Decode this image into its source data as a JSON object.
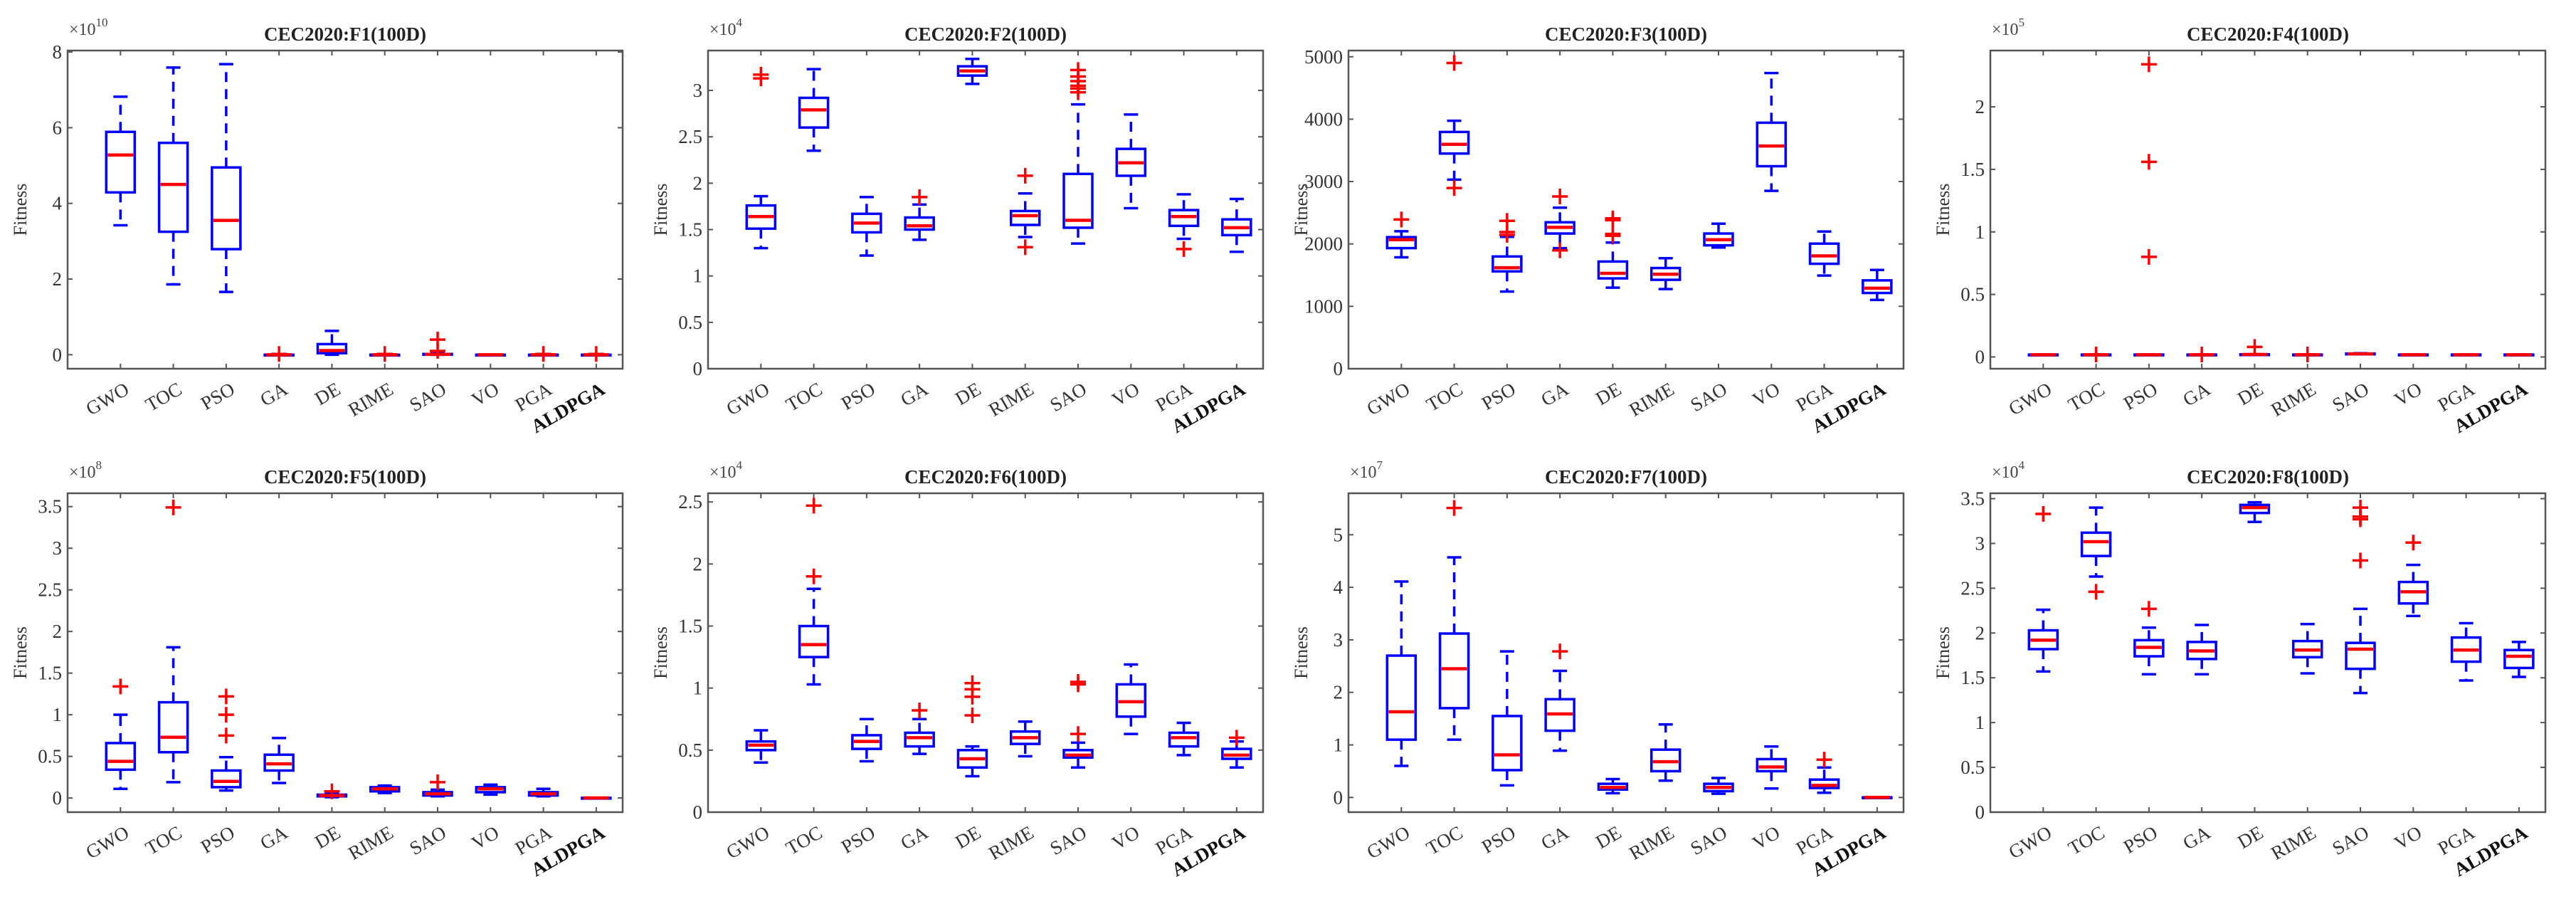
{
  "chart_data": [
    {
      "type": "boxplot",
      "title": "CEC2020:F1(100D)",
      "ylabel": "Fitness",
      "multiplier": "×10",
      "exponent": "10",
      "categories": [
        "GWO",
        "TOC",
        "PSO",
        "GA",
        "DE",
        "RIME",
        "SAO",
        "VO",
        "PGA",
        "ALDPGA"
      ],
      "highlight_category": "ALDPGA",
      "ylim": [
        -0.37,
        8.04
      ],
      "yticks": [
        0,
        2,
        4,
        6,
        8
      ],
      "ytick_labels": [
        "0",
        "2",
        "4",
        "6",
        "8"
      ],
      "boxes": [
        {
          "low": 3.42,
          "q1": 4.29,
          "median": 5.28,
          "q3": 5.89,
          "high": 6.82,
          "outliers": []
        },
        {
          "low": 1.86,
          "q1": 3.25,
          "median": 4.5,
          "q3": 5.6,
          "high": 7.59,
          "outliers": []
        },
        {
          "low": 1.66,
          "q1": 2.79,
          "median": 3.55,
          "q3": 4.95,
          "high": 7.68,
          "outliers": []
        },
        {
          "low": 0,
          "q1": 0,
          "median": 0,
          "q3": 0,
          "high": 0,
          "outliers": [
            0.02
          ]
        },
        {
          "low": 0,
          "q1": 0.04,
          "median": 0.11,
          "q3": 0.28,
          "high": 0.63,
          "outliers": []
        },
        {
          "low": 0,
          "q1": 0,
          "median": 0,
          "q3": 0,
          "high": 0,
          "outliers": [
            0.02
          ]
        },
        {
          "low": 0,
          "q1": 0,
          "median": 0.01,
          "q3": 0.02,
          "high": 0.04,
          "outliers": [
            0.1,
            0.4
          ]
        },
        {
          "low": 0,
          "q1": 0,
          "median": 0,
          "q3": 0,
          "high": 0,
          "outliers": []
        },
        {
          "low": 0,
          "q1": 0,
          "median": 0,
          "q3": 0,
          "high": 0,
          "outliers": [
            0.02
          ]
        },
        {
          "low": 0,
          "q1": 0,
          "median": 0,
          "q3": 0,
          "high": 0,
          "outliers": [
            0.02
          ]
        }
      ]
    },
    {
      "type": "boxplot",
      "title": "CEC2020:F2(100D)",
      "ylabel": "Fitness",
      "multiplier": "×10",
      "exponent": "4",
      "categories": [
        "GWO",
        "TOC",
        "PSO",
        "GA",
        "DE",
        "RIME",
        "SAO",
        "VO",
        "PGA",
        "ALDPGA"
      ],
      "highlight_category": "ALDPGA",
      "ylim": [
        0,
        3.43
      ],
      "yticks": [
        0,
        0.5,
        1,
        1.5,
        2,
        2.5,
        3
      ],
      "ytick_labels": [
        "0",
        "0.5",
        "1",
        "1.5",
        "2",
        "2.5",
        "3"
      ],
      "boxes": [
        {
          "low": 1.3,
          "q1": 1.51,
          "median": 1.64,
          "q3": 1.76,
          "high": 1.86,
          "outliers": [
            3.13,
            3.17
          ]
        },
        {
          "low": 2.35,
          "q1": 2.6,
          "median": 2.79,
          "q3": 2.92,
          "high": 3.23,
          "outliers": []
        },
        {
          "low": 1.22,
          "q1": 1.47,
          "median": 1.57,
          "q3": 1.67,
          "high": 1.85,
          "outliers": []
        },
        {
          "low": 1.39,
          "q1": 1.5,
          "median": 1.54,
          "q3": 1.63,
          "high": 1.77,
          "outliers": [
            1.85
          ]
        },
        {
          "low": 3.07,
          "q1": 3.16,
          "median": 3.21,
          "q3": 3.26,
          "high": 3.34,
          "outliers": []
        },
        {
          "low": 1.42,
          "q1": 1.55,
          "median": 1.65,
          "q3": 1.7,
          "high": 1.89,
          "outliers": [
            2.08,
            1.31
          ]
        },
        {
          "low": 1.35,
          "q1": 1.52,
          "median": 1.6,
          "q3": 2.1,
          "high": 2.85,
          "outliers": [
            2.98,
            3.02,
            3.05,
            3.1,
            3.15,
            3.22
          ]
        },
        {
          "low": 1.73,
          "q1": 2.08,
          "median": 2.22,
          "q3": 2.37,
          "high": 2.74,
          "outliers": []
        },
        {
          "low": 1.4,
          "q1": 1.54,
          "median": 1.64,
          "q3": 1.71,
          "high": 1.88,
          "outliers": [
            1.29
          ]
        },
        {
          "low": 1.26,
          "q1": 1.44,
          "median": 1.52,
          "q3": 1.61,
          "high": 1.83,
          "outliers": []
        }
      ]
    },
    {
      "type": "boxplot",
      "title": "CEC2020:F3(100D)",
      "ylabel": "Fitness",
      "multiplier": "",
      "exponent": "",
      "categories": [
        "GWO",
        "TOC",
        "PSO",
        "GA",
        "DE",
        "RIME",
        "SAO",
        "VO",
        "PGA",
        "ALDPGA"
      ],
      "highlight_category": "ALDPGA",
      "ylim": [
        0,
        5100
      ],
      "yticks": [
        0,
        1000,
        2000,
        3000,
        4000,
        5000
      ],
      "ytick_labels": [
        "0",
        "1000",
        "2000",
        "3000",
        "4000",
        "5000"
      ],
      "boxes": [
        {
          "low": 1785,
          "q1": 1933,
          "median": 2068,
          "q3": 2109,
          "high": 2203,
          "outliers": [
            2392
          ]
        },
        {
          "low": 3031,
          "q1": 3449,
          "median": 3597,
          "q3": 3795,
          "high": 3975,
          "outliers": [
            2896,
            4901
          ]
        },
        {
          "low": 1236,
          "q1": 1560,
          "median": 1619,
          "q3": 1799,
          "high": 2113,
          "outliers": [
            2145,
            2190,
            2370
          ]
        },
        {
          "low": 1933,
          "q1": 2167,
          "median": 2266,
          "q3": 2347,
          "high": 2581,
          "outliers": [
            1897,
            2761
          ]
        },
        {
          "low": 1299,
          "q1": 1448,
          "median": 1529,
          "q3": 1718,
          "high": 2023,
          "outliers": [
            2130,
            2160,
            2380,
            2410
          ]
        },
        {
          "low": 1277,
          "q1": 1425,
          "median": 1515,
          "q3": 1614,
          "high": 1772,
          "outliers": []
        },
        {
          "low": 1942,
          "q1": 1978,
          "median": 2068,
          "q3": 2167,
          "high": 2325,
          "outliers": []
        },
        {
          "low": 2851,
          "q1": 3246,
          "median": 3570,
          "q3": 3943,
          "high": 4739,
          "outliers": []
        },
        {
          "low": 1493,
          "q1": 1682,
          "median": 1808,
          "q3": 2005,
          "high": 2199,
          "outliers": []
        },
        {
          "low": 1102,
          "q1": 1214,
          "median": 1290,
          "q3": 1416,
          "high": 1583,
          "outliers": []
        }
      ]
    },
    {
      "type": "boxplot",
      "title": "CEC2020:F4(100D)",
      "ylabel": "Fitness",
      "multiplier": "×10",
      "exponent": "5",
      "categories": [
        "GWO",
        "TOC",
        "PSO",
        "GA",
        "DE",
        "RIME",
        "SAO",
        "VO",
        "PGA",
        "ALDPGA"
      ],
      "highlight_category": "ALDPGA",
      "ylim": [
        -0.094,
        2.45
      ],
      "yticks": [
        0,
        0.5,
        1,
        1.5,
        2
      ],
      "ytick_labels": [
        "0",
        "0.5",
        "1",
        "1.5",
        "2"
      ],
      "boxes": [
        {
          "low": 0.017,
          "q1": 0.018,
          "median": 0.018,
          "q3": 0.019,
          "high": 0.02,
          "outliers": []
        },
        {
          "low": 0.017,
          "q1": 0.018,
          "median": 0.018,
          "q3": 0.019,
          "high": 0.02,
          "outliers": [
            0.02
          ]
        },
        {
          "low": 0.017,
          "q1": 0.018,
          "median": 0.018,
          "q3": 0.019,
          "high": 0.02,
          "outliers": [
            0.8,
            1.56,
            2.34
          ]
        },
        {
          "low": 0.017,
          "q1": 0.018,
          "median": 0.018,
          "q3": 0.019,
          "high": 0.02,
          "outliers": [
            0.02
          ]
        },
        {
          "low": 0.018,
          "q1": 0.019,
          "median": 0.02,
          "q3": 0.021,
          "high": 0.022,
          "outliers": [
            0.08
          ]
        },
        {
          "low": 0.017,
          "q1": 0.018,
          "median": 0.018,
          "q3": 0.019,
          "high": 0.02,
          "outliers": [
            0.02
          ]
        },
        {
          "low": 0.022,
          "q1": 0.024,
          "median": 0.025,
          "q3": 0.027,
          "high": 0.03,
          "outliers": []
        },
        {
          "low": 0.017,
          "q1": 0.018,
          "median": 0.018,
          "q3": 0.019,
          "high": 0.02,
          "outliers": []
        },
        {
          "low": 0.017,
          "q1": 0.018,
          "median": 0.018,
          "q3": 0.019,
          "high": 0.02,
          "outliers": []
        },
        {
          "low": 0.017,
          "q1": 0.018,
          "median": 0.018,
          "q3": 0.019,
          "high": 0.02,
          "outliers": []
        }
      ]
    },
    {
      "type": "boxplot",
      "title": "CEC2020:F5(100D)",
      "ylabel": "Fitness",
      "multiplier": "×10",
      "exponent": "8",
      "categories": [
        "GWO",
        "TOC",
        "PSO",
        "GA",
        "DE",
        "RIME",
        "SAO",
        "VO",
        "PGA",
        "ALDPGA"
      ],
      "highlight_category": "ALDPGA",
      "ylim": [
        -0.17,
        3.66
      ],
      "yticks": [
        0,
        0.5,
        1,
        1.5,
        2,
        2.5,
        3,
        3.5
      ],
      "ytick_labels": [
        "0",
        "0.5",
        "1",
        "1.5",
        "2",
        "2.5",
        "3",
        "3.5"
      ],
      "boxes": [
        {
          "low": 0.11,
          "q1": 0.34,
          "median": 0.44,
          "q3": 0.66,
          "high": 1.0,
          "outliers": [
            1.34
          ]
        },
        {
          "low": 0.19,
          "q1": 0.55,
          "median": 0.73,
          "q3": 1.15,
          "high": 1.81,
          "outliers": [
            3.49
          ]
        },
        {
          "low": 0.09,
          "q1": 0.13,
          "median": 0.2,
          "q3": 0.33,
          "high": 0.49,
          "outliers": [
            0.75,
            1.0,
            1.22
          ]
        },
        {
          "low": 0.18,
          "q1": 0.33,
          "median": 0.41,
          "q3": 0.52,
          "high": 0.72,
          "outliers": []
        },
        {
          "low": 0.01,
          "q1": 0.02,
          "median": 0.03,
          "q3": 0.04,
          "high": 0.05,
          "outliers": [
            0.08
          ]
        },
        {
          "low": 0.06,
          "q1": 0.08,
          "median": 0.11,
          "q3": 0.13,
          "high": 0.15,
          "outliers": []
        },
        {
          "low": 0.02,
          "q1": 0.03,
          "median": 0.05,
          "q3": 0.07,
          "high": 0.1,
          "outliers": [
            0.19
          ]
        },
        {
          "low": 0.04,
          "q1": 0.07,
          "median": 0.11,
          "q3": 0.13,
          "high": 0.16,
          "outliers": []
        },
        {
          "low": 0.02,
          "q1": 0.03,
          "median": 0.05,
          "q3": 0.07,
          "high": 0.11,
          "outliers": []
        },
        {
          "low": 0.0,
          "q1": 0.0,
          "median": 0.001,
          "q3": 0.002,
          "high": 0.003,
          "outliers": []
        }
      ]
    },
    {
      "type": "boxplot",
      "title": "CEC2020:F6(100D)",
      "ylabel": "Fitness",
      "multiplier": "×10",
      "exponent": "4",
      "categories": [
        "GWO",
        "TOC",
        "PSO",
        "GA",
        "DE",
        "RIME",
        "SAO",
        "VO",
        "PGA",
        "ALDPGA"
      ],
      "highlight_category": "ALDPGA",
      "ylim": [
        0,
        2.57
      ],
      "yticks": [
        0,
        0.5,
        1,
        1.5,
        2,
        2.5
      ],
      "ytick_labels": [
        "0",
        "0.5",
        "1",
        "1.5",
        "2",
        "2.5"
      ],
      "boxes": [
        {
          "low": 0.4,
          "q1": 0.5,
          "median": 0.54,
          "q3": 0.57,
          "high": 0.66,
          "outliers": []
        },
        {
          "low": 1.03,
          "q1": 1.25,
          "median": 1.35,
          "q3": 1.5,
          "high": 1.8,
          "outliers": [
            1.9,
            2.47
          ]
        },
        {
          "low": 0.41,
          "q1": 0.51,
          "median": 0.57,
          "q3": 0.62,
          "high": 0.75,
          "outliers": []
        },
        {
          "low": 0.47,
          "q1": 0.53,
          "median": 0.6,
          "q3": 0.64,
          "high": 0.75,
          "outliers": [
            0.82
          ]
        },
        {
          "low": 0.29,
          "q1": 0.36,
          "median": 0.43,
          "q3": 0.5,
          "high": 0.53,
          "outliers": [
            0.78,
            0.93,
            0.99,
            1.04
          ]
        },
        {
          "low": 0.45,
          "q1": 0.55,
          "median": 0.6,
          "q3": 0.65,
          "high": 0.73,
          "outliers": []
        },
        {
          "low": 0.36,
          "q1": 0.44,
          "median": 0.46,
          "q3": 0.5,
          "high": 0.56,
          "outliers": [
            0.63,
            1.03,
            1.05
          ]
        },
        {
          "low": 0.63,
          "q1": 0.77,
          "median": 0.89,
          "q3": 1.03,
          "high": 1.19,
          "outliers": []
        },
        {
          "low": 0.46,
          "q1": 0.53,
          "median": 0.6,
          "q3": 0.64,
          "high": 0.72,
          "outliers": []
        },
        {
          "low": 0.36,
          "q1": 0.43,
          "median": 0.46,
          "q3": 0.51,
          "high": 0.57,
          "outliers": [
            0.6
          ]
        }
      ]
    },
    {
      "type": "boxplot",
      "title": "CEC2020:F7(100D)",
      "ylabel": "Fitness",
      "multiplier": "×10",
      "exponent": "7",
      "categories": [
        "GWO",
        "TOC",
        "PSO",
        "GA",
        "DE",
        "RIME",
        "SAO",
        "VO",
        "PGA",
        "ALDPGA"
      ],
      "highlight_category": "ALDPGA",
      "ylim": [
        -0.28,
        5.79
      ],
      "yticks": [
        0,
        1,
        2,
        3,
        4,
        5
      ],
      "ytick_labels": [
        "0",
        "1",
        "2",
        "3",
        "4",
        "5"
      ],
      "boxes": [
        {
          "low": 0.6,
          "q1": 1.1,
          "median": 1.63,
          "q3": 2.7,
          "high": 4.11,
          "outliers": []
        },
        {
          "low": 1.1,
          "q1": 1.7,
          "median": 2.45,
          "q3": 3.12,
          "high": 4.57,
          "outliers": [
            5.51
          ]
        },
        {
          "low": 0.23,
          "q1": 0.52,
          "median": 0.81,
          "q3": 1.55,
          "high": 2.78,
          "outliers": []
        },
        {
          "low": 0.89,
          "q1": 1.27,
          "median": 1.59,
          "q3": 1.87,
          "high": 2.41,
          "outliers": [
            2.78
          ]
        },
        {
          "low": 0.08,
          "q1": 0.15,
          "median": 0.19,
          "q3": 0.26,
          "high": 0.35,
          "outliers": []
        },
        {
          "low": 0.32,
          "q1": 0.5,
          "median": 0.68,
          "q3": 0.91,
          "high": 1.39,
          "outliers": []
        },
        {
          "low": 0.07,
          "q1": 0.12,
          "median": 0.19,
          "q3": 0.26,
          "high": 0.37,
          "outliers": []
        },
        {
          "low": 0.17,
          "q1": 0.5,
          "median": 0.58,
          "q3": 0.73,
          "high": 0.97,
          "outliers": []
        },
        {
          "low": 0.09,
          "q1": 0.18,
          "median": 0.23,
          "q3": 0.34,
          "high": 0.57,
          "outliers": [
            0.72
          ]
        },
        {
          "low": 0.0,
          "q1": 0.0,
          "median": 0.001,
          "q3": 0.002,
          "high": 0.003,
          "outliers": []
        }
      ]
    },
    {
      "type": "boxplot",
      "title": "CEC2020:F8(100D)",
      "ylabel": "Fitness",
      "multiplier": "×10",
      "exponent": "4",
      "categories": [
        "GWO",
        "TOC",
        "PSO",
        "GA",
        "DE",
        "RIME",
        "SAO",
        "VO",
        "PGA",
        "ALDPGA"
      ],
      "highlight_category": "ALDPGA",
      "ylim": [
        0,
        3.56
      ],
      "yticks": [
        0,
        0.5,
        1,
        1.5,
        2,
        2.5,
        3,
        3.5
      ],
      "ytick_labels": [
        "0",
        "0.5",
        "1",
        "1.5",
        "2",
        "2.5",
        "3",
        "3.5"
      ],
      "boxes": [
        {
          "low": 1.57,
          "q1": 1.82,
          "median": 1.92,
          "q3": 2.03,
          "high": 2.26,
          "outliers": [
            3.33
          ]
        },
        {
          "low": 2.63,
          "q1": 2.86,
          "median": 3.02,
          "q3": 3.12,
          "high": 3.4,
          "outliers": [
            2.46
          ]
        },
        {
          "low": 1.54,
          "q1": 1.74,
          "median": 1.84,
          "q3": 1.92,
          "high": 2.06,
          "outliers": [
            2.27
          ]
        },
        {
          "low": 1.54,
          "q1": 1.71,
          "median": 1.8,
          "q3": 1.9,
          "high": 2.09,
          "outliers": []
        },
        {
          "low": 3.24,
          "q1": 3.34,
          "median": 3.4,
          "q3": 3.43,
          "high": 3.46,
          "outliers": []
        },
        {
          "low": 1.55,
          "q1": 1.73,
          "median": 1.81,
          "q3": 1.91,
          "high": 2.1,
          "outliers": []
        },
        {
          "low": 1.33,
          "q1": 1.6,
          "median": 1.82,
          "q3": 1.89,
          "high": 2.27,
          "outliers": [
            2.81,
            3.27,
            3.3,
            3.4
          ]
        },
        {
          "low": 2.19,
          "q1": 2.33,
          "median": 2.46,
          "q3": 2.57,
          "high": 2.76,
          "outliers": [
            3.01
          ]
        },
        {
          "low": 1.47,
          "q1": 1.68,
          "median": 1.81,
          "q3": 1.95,
          "high": 2.11,
          "outliers": []
        },
        {
          "low": 1.51,
          "q1": 1.61,
          "median": 1.74,
          "q3": 1.81,
          "high": 1.9,
          "outliers": []
        }
      ]
    }
  ],
  "colors": {
    "box": "#0000ff",
    "median": "#ff0000",
    "outlier": "#ff0000",
    "axis": "#555555"
  }
}
